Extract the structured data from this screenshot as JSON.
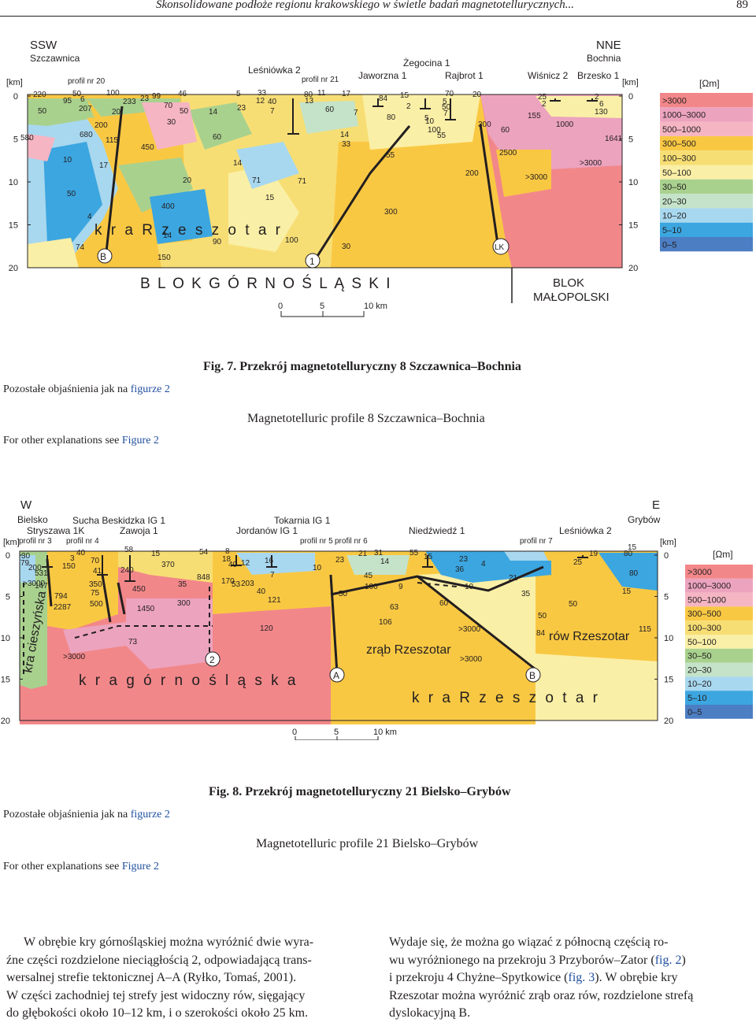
{
  "header": {
    "title": "Skonsolidowane podłoże regionu krakowskiego w świetle badań magnetotellurycznych...",
    "page": "89"
  },
  "legend": {
    "unit": "[Ωm]",
    "classes": [
      ">3000",
      "1000–3000",
      "500–1000",
      "300–500",
      "100–300",
      "50–100",
      "30–50",
      "20–30",
      "10–20",
      "5–10",
      "0–5"
    ],
    "colors": [
      "#f2878a",
      "#eca3be",
      "#f5b5c3",
      "#f9c843",
      "#f7de74",
      "#faefa6",
      "#a9d18e",
      "#c4e3c9",
      "#a8d8ef",
      "#3ca6e0",
      "#4c7ec3"
    ]
  },
  "fig7": {
    "dir_left": "SSW",
    "dir_left_town": "Szczawnica",
    "dir_right": "NNE",
    "dir_right_town": "Bochnia",
    "km_unit": "[km]",
    "depth_ticks": [
      "0",
      "5",
      "10",
      "15",
      "20"
    ],
    "wells": [
      "Leśniówka 2",
      "Jaworzna 1",
      "Żegocina 1",
      "Rajbrot 1",
      "Wiśnicz 2",
      "Brzesko 1"
    ],
    "profiles": [
      "profil nr 20",
      "profil nr 21"
    ],
    "units": [
      "k r a   R z e s z o t a r",
      "B L O K   G Ó R N O Ś L Ą S K I",
      "BLOK",
      "MAŁOPOLSKI"
    ],
    "markers": [
      "B",
      "1",
      "LK"
    ],
    "scale": [
      "0",
      "5",
      "10 km"
    ],
    "caption_pl": "Fig. 7. Przekrój magnetotelluryczny 8 Szczawnica–Bochnia",
    "caption_en": "Magnetotelluric profile 8 Szczawnica–Bochnia",
    "note_pl": "Pozostałe objaśnienia jak na",
    "note_pl_ref": "figurze 2",
    "note_en": "For other explanations see",
    "note_en_ref": "Figure 2",
    "values": [
      {
        "v": "220"
      },
      {
        "v": "50"
      },
      {
        "v": "100"
      },
      {
        "v": "95"
      },
      {
        "v": "6"
      },
      {
        "v": "233"
      },
      {
        "v": "23"
      },
      {
        "v": "99"
      },
      {
        "v": "46"
      },
      {
        "v": "50"
      },
      {
        "v": "207"
      },
      {
        "v": "20"
      },
      {
        "v": "70"
      },
      {
        "v": "50"
      },
      {
        "v": "14"
      },
      {
        "v": "5"
      },
      {
        "v": "33"
      },
      {
        "v": "12"
      },
      {
        "v": "40"
      },
      {
        "v": "23"
      },
      {
        "v": "7"
      },
      {
        "v": "80"
      },
      {
        "v": "11"
      },
      {
        "v": "17"
      },
      {
        "v": "13"
      },
      {
        "v": "60"
      },
      {
        "v": "7"
      },
      {
        "v": "84"
      },
      {
        "v": "15"
      },
      {
        "v": "70"
      },
      {
        "v": "20"
      },
      {
        "v": "5"
      },
      {
        "v": "2"
      },
      {
        "v": "50"
      },
      {
        "v": "7"
      },
      {
        "v": "25"
      },
      {
        "v": "2"
      },
      {
        "v": "2"
      },
      {
        "v": "6"
      },
      {
        "v": "130"
      },
      {
        "v": "155"
      },
      {
        "v": "80"
      },
      {
        "v": "5"
      },
      {
        "v": "10"
      },
      {
        "v": "300"
      },
      {
        "v": "1000"
      },
      {
        "v": "200"
      },
      {
        "v": "30"
      },
      {
        "v": "100"
      },
      {
        "v": "60"
      },
      {
        "v": "580"
      },
      {
        "v": "680"
      },
      {
        "v": "115"
      },
      {
        "v": "60"
      },
      {
        "v": "14"
      },
      {
        "v": "55"
      },
      {
        "v": "1641"
      },
      {
        "v": "450"
      },
      {
        "v": "33"
      },
      {
        "v": "2500"
      },
      {
        "v": "10"
      },
      {
        "v": "17"
      },
      {
        "v": "55"
      },
      {
        "v": ">3000"
      },
      {
        "v": "14"
      },
      {
        "v": "200"
      },
      {
        "v": ">3000"
      },
      {
        "v": "20"
      },
      {
        "v": "71"
      },
      {
        "v": "71"
      },
      {
        "v": "50"
      },
      {
        "v": "15"
      },
      {
        "v": "400"
      },
      {
        "v": "300"
      },
      {
        "v": "4"
      },
      {
        "v": "14"
      },
      {
        "v": "100"
      },
      {
        "v": "74"
      },
      {
        "v": "90"
      },
      {
        "v": "30"
      },
      {
        "v": "150"
      }
    ]
  },
  "fig8": {
    "dir_left": "W",
    "dir_left_town": "Bielsko",
    "dir_right": "E",
    "dir_right_town": "Grybów",
    "km_unit": "[km]",
    "depth_ticks": [
      "0",
      "5",
      "10",
      "15",
      "20"
    ],
    "wells": [
      "Sucha Beskidzka IG 1",
      "Stryszawa 1K",
      "Zawoja 1",
      "Tokarnia IG 1",
      "Jordanów IG 1",
      "Niedźwiedź 1",
      "Leśniówka 2"
    ],
    "profiles": [
      "profil nr 3",
      "profil nr 4",
      "profil nr 5",
      "profil nr 6",
      "profil nr 7"
    ],
    "units": [
      "kra cieszyńska",
      "k r a   g ó r n o ś l ą s k a",
      "zrąb  Rzeszotar",
      "rów Rzeszotar",
      "k r a  R z e s z o t a r"
    ],
    "markers": [
      "2",
      "A",
      "B"
    ],
    "scale": [
      "0",
      "5",
      "10 km"
    ],
    "caption_pl": "Fig. 8. Przekrój magnetotelluryczny 21 Bielsko–Grybów",
    "caption_en": "Magnetotelluric profile 21 Bielsko–Grybów",
    "note_pl": "Pozostałe objaśnienia jak na",
    "note_pl_ref": "figurze 2",
    "note_en": "For other explanations see",
    "note_en_ref": "Figure 2",
    "values": [
      {
        "v": "30"
      },
      {
        "v": "79"
      },
      {
        "v": "40"
      },
      {
        "v": "58"
      },
      {
        "v": "15"
      },
      {
        "v": "54"
      },
      {
        "v": "8"
      },
      {
        "v": "18"
      },
      {
        "v": "16"
      },
      {
        "v": "21"
      },
      {
        "v": "31"
      },
      {
        "v": "55"
      },
      {
        "v": "15"
      },
      {
        "v": "23"
      },
      {
        "v": "19"
      },
      {
        "v": "80"
      },
      {
        "v": "15"
      },
      {
        "v": "25"
      },
      {
        "v": "200"
      },
      {
        "v": "3"
      },
      {
        "v": "70"
      },
      {
        "v": "370"
      },
      {
        "v": "40"
      },
      {
        "v": "12"
      },
      {
        "v": "23"
      },
      {
        "v": "14"
      },
      {
        "v": "4"
      },
      {
        "v": "36"
      },
      {
        "v": "80"
      },
      {
        "v": "150"
      },
      {
        "v": "41"
      },
      {
        "v": "240"
      },
      {
        "v": "848"
      },
      {
        "v": "10"
      },
      {
        "v": "45"
      },
      {
        "v": "50"
      },
      {
        "v": "21"
      },
      {
        "v": "531"
      },
      {
        "v": "35"
      },
      {
        "v": "170"
      },
      {
        "v": "53"
      },
      {
        "v": "203"
      },
      {
        "v": "7"
      },
      {
        "v": ">3000"
      },
      {
        "v": "147"
      },
      {
        "v": "350"
      },
      {
        "v": "450"
      },
      {
        "v": "40"
      },
      {
        "v": "100"
      },
      {
        "v": "9"
      },
      {
        "v": "10"
      },
      {
        "v": "35"
      },
      {
        "v": "15"
      },
      {
        "v": "794"
      },
      {
        "v": "75"
      },
      {
        "v": "121"
      },
      {
        "v": "50"
      },
      {
        "v": "2287"
      },
      {
        "v": "500"
      },
      {
        "v": "1450"
      },
      {
        "v": "300"
      },
      {
        "v": "63"
      },
      {
        "v": "60"
      },
      {
        "v": "50"
      },
      {
        "v": "106"
      },
      {
        "v": "120"
      },
      {
        "v": ">3000"
      },
      {
        "v": "115"
      },
      {
        "v": "84"
      },
      {
        "v": "73"
      },
      {
        "v": ">3000"
      },
      {
        "v": ">3000"
      },
      {
        "v": "300"
      }
    ]
  },
  "body": {
    "left": [
      "W obrębie kry górnośląskiej można wyróżnić dwie wyra-",
      "źne części rozdzielone nieciągłością 2, odpowiadającą trans-",
      "wersalnej strefie tektonicznej A–A (Ryłko, Tomaś, 2001).",
      "W części zachodniej tej strefy jest widoczny rów, sięgający",
      "do głębokości około 10–12 km, i o szerokości około 25 km."
    ],
    "right_1a": "Wydaje się, że można go wiązać z północną częścią ro-",
    "right_2a": "wu wyróżnionego na przekroju 3 Przyborów–Zator (",
    "right_2_ref": "fig. 2",
    "right_2b": ")",
    "right_3a": "i przekroju 4 Chyżne–Spytkowice (",
    "right_3_ref": "fig. 3",
    "right_3b": "). W obrębie kry",
    "right_4": "Rzeszotar można wyróżnić zrąb oraz rów, rozdzielone strefą",
    "right_5": "dyslokacyjną B."
  }
}
